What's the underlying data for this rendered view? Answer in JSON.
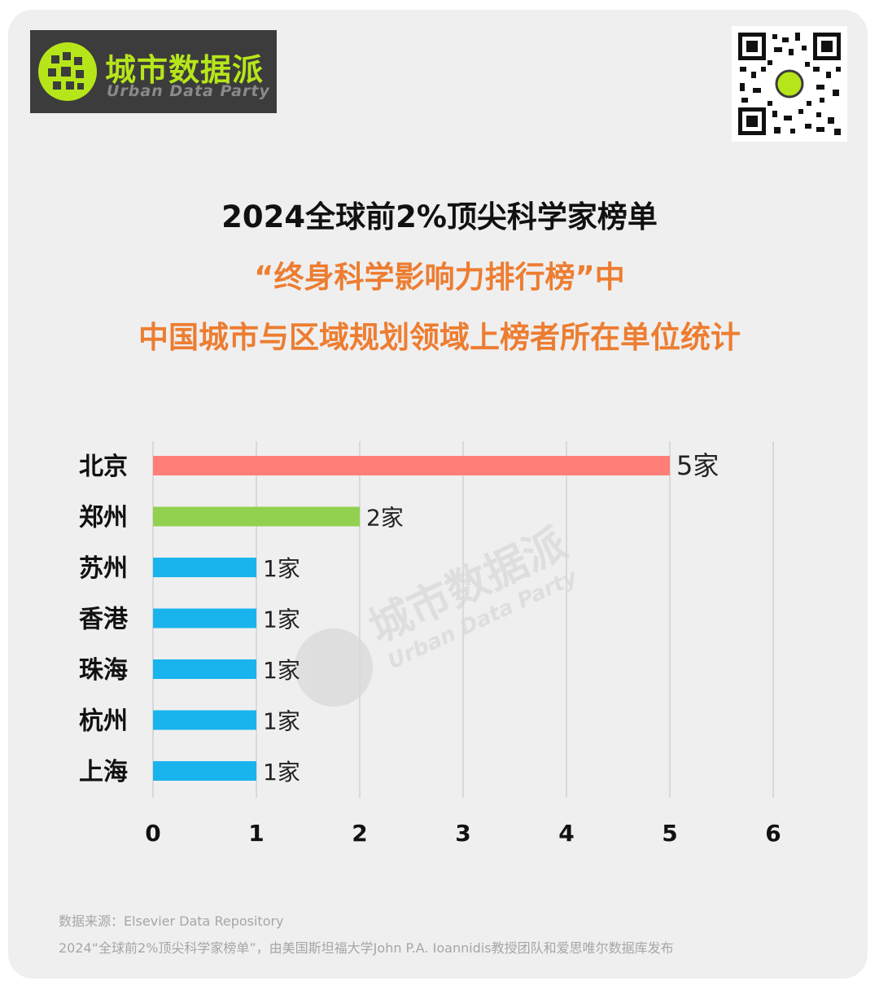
{
  "brand": {
    "name_cn": "城市数据派",
    "name_en": "Urban Data Party"
  },
  "header": {
    "title_line1": "2024全球前2%顶尖科学家榜单",
    "title_line2": "“终身科学影响力排行榜”中",
    "title_line3": "中国城市与区域规划领域上榜者所在单位统计"
  },
  "chart_data": {
    "type": "bar",
    "orientation": "horizontal",
    "categories": [
      "北京",
      "郑州",
      "苏州",
      "香港",
      "珠海",
      "杭州",
      "上海"
    ],
    "values": [
      5,
      2,
      1,
      1,
      1,
      1,
      1
    ],
    "data_labels": [
      "5家",
      "2家",
      "1家",
      "1家",
      "1家",
      "1家",
      "1家"
    ],
    "bar_colors": [
      "#ff7f78",
      "#92d050",
      "#19b4ee",
      "#19b4ee",
      "#19b4ee",
      "#19b4ee",
      "#19b4ee"
    ],
    "xlim": [
      0,
      6
    ],
    "x_ticks": [
      0,
      1,
      2,
      3,
      4,
      5,
      6
    ],
    "grid": true,
    "title": "",
    "xlabel": "",
    "ylabel": ""
  },
  "footer": {
    "source": "数据来源：Elsevier Data Repository",
    "note": "2024“全球前2%顶尖科学家榜单”，由美国斯坦福大学John P.A. Ioannidis教授团队和爱思唯尔数据库发布"
  },
  "colors": {
    "accent": "#ed7d31",
    "brand_green": "#b6e61a"
  }
}
